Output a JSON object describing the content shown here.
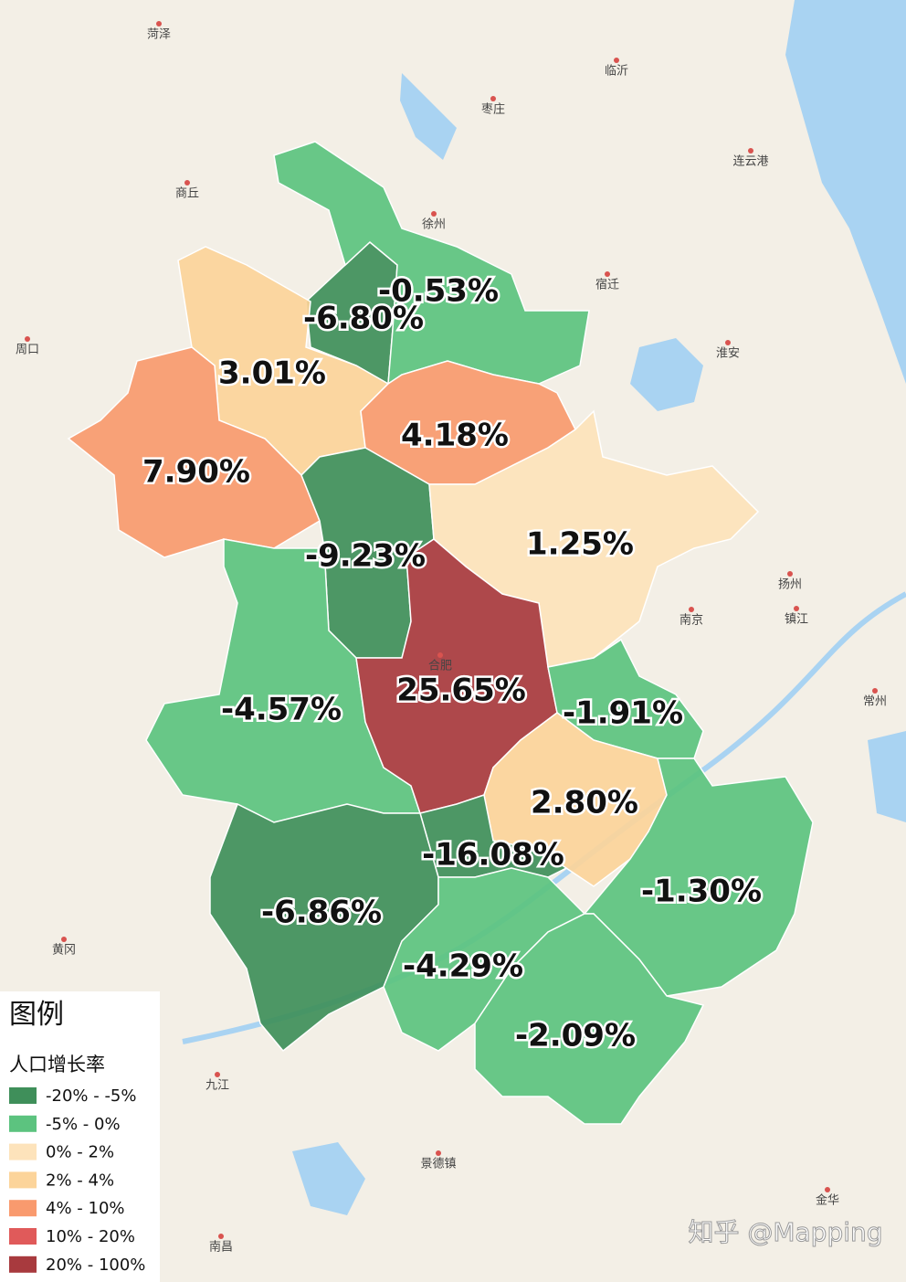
{
  "map": {
    "regions": [
      {
        "label": "-6.80%",
        "color": "#3f8f5a"
      },
      {
        "label": "-0.53%",
        "color": "#5cc37f"
      },
      {
        "label": "3.01%",
        "color": "#fcd49a"
      },
      {
        "label": "7.90%",
        "color": "#f99a6e"
      },
      {
        "label": "4.18%",
        "color": "#f99a6e"
      },
      {
        "label": "-9.23%",
        "color": "#3f8f5a"
      },
      {
        "label": "1.25%",
        "color": "#fde3bb"
      },
      {
        "label": "-4.57%",
        "color": "#5cc37f"
      },
      {
        "label": "25.65%",
        "color": "#a83a3e"
      },
      {
        "label": "-1.91%",
        "color": "#5cc37f"
      },
      {
        "label": "2.80%",
        "color": "#fcd49a"
      },
      {
        "label": "-16.08%",
        "color": "#3f8f5a"
      },
      {
        "label": "-6.86%",
        "color": "#3f8f5a"
      },
      {
        "label": "-4.29%",
        "color": "#5cc37f"
      },
      {
        "label": "-1.30%",
        "color": "#5cc37f"
      },
      {
        "label": "-2.09%",
        "color": "#5cc37f"
      }
    ],
    "cities": [
      "菏泽",
      "商丘",
      "周口",
      "枣庄",
      "临沂",
      "连云港",
      "宿迁",
      "徐州",
      "淮安",
      "扬州",
      "镇江",
      "南京",
      "常州",
      "合肥",
      "九江",
      "黄冈",
      "南昌",
      "景德镇",
      "金华"
    ],
    "legend": {
      "title": "图例",
      "subtitle": "人口增长率",
      "items": [
        {
          "label": "-20% - -5%",
          "color": "#3f8f5a"
        },
        {
          "label": "-5% - 0%",
          "color": "#5cc37f"
        },
        {
          "label": "0% - 2%",
          "color": "#fde3bb"
        },
        {
          "label": "2% - 4%",
          "color": "#fcd49a"
        },
        {
          "label": "4% - 10%",
          "color": "#f99a6e"
        },
        {
          "label": "10% - 20%",
          "color": "#e05a5a"
        },
        {
          "label": "20% - 100%",
          "color": "#a83a3e"
        }
      ]
    },
    "watermark": "知乎 @Mapping"
  }
}
